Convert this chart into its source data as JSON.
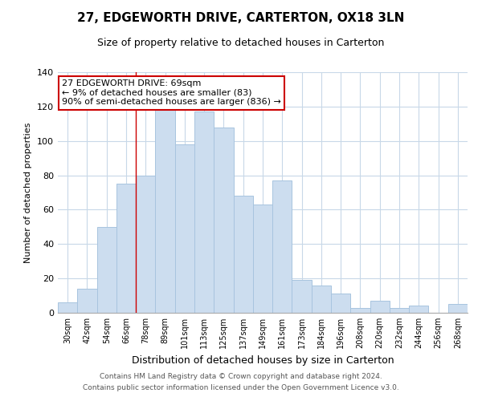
{
  "title": "27, EDGEWORTH DRIVE, CARTERTON, OX18 3LN",
  "subtitle": "Size of property relative to detached houses in Carterton",
  "xlabel": "Distribution of detached houses by size in Carterton",
  "ylabel": "Number of detached properties",
  "bar_color": "#ccddef",
  "bar_edge_color": "#a8c4df",
  "categories": [
    "30sqm",
    "42sqm",
    "54sqm",
    "66sqm",
    "78sqm",
    "89sqm",
    "101sqm",
    "113sqm",
    "125sqm",
    "137sqm",
    "149sqm",
    "161sqm",
    "173sqm",
    "184sqm",
    "196sqm",
    "208sqm",
    "220sqm",
    "232sqm",
    "244sqm",
    "256sqm",
    "268sqm"
  ],
  "values": [
    6,
    14,
    50,
    75,
    80,
    118,
    98,
    117,
    108,
    68,
    63,
    77,
    19,
    16,
    11,
    3,
    7,
    3,
    4,
    0,
    5
  ],
  "ylim": [
    0,
    140
  ],
  "yticks": [
    0,
    20,
    40,
    60,
    80,
    100,
    120,
    140
  ],
  "property_line_x": 3.5,
  "annotation_text": "27 EDGEWORTH DRIVE: 69sqm\n← 9% of detached houses are smaller (83)\n90% of semi-detached houses are larger (836) →",
  "annotation_box_color": "#ffffff",
  "annotation_border_color": "#cc0000",
  "footer_line1": "Contains HM Land Registry data © Crown copyright and database right 2024.",
  "footer_line2": "Contains public sector information licensed under the Open Government Licence v3.0.",
  "background_color": "#ffffff",
  "grid_color": "#c8d8e8"
}
